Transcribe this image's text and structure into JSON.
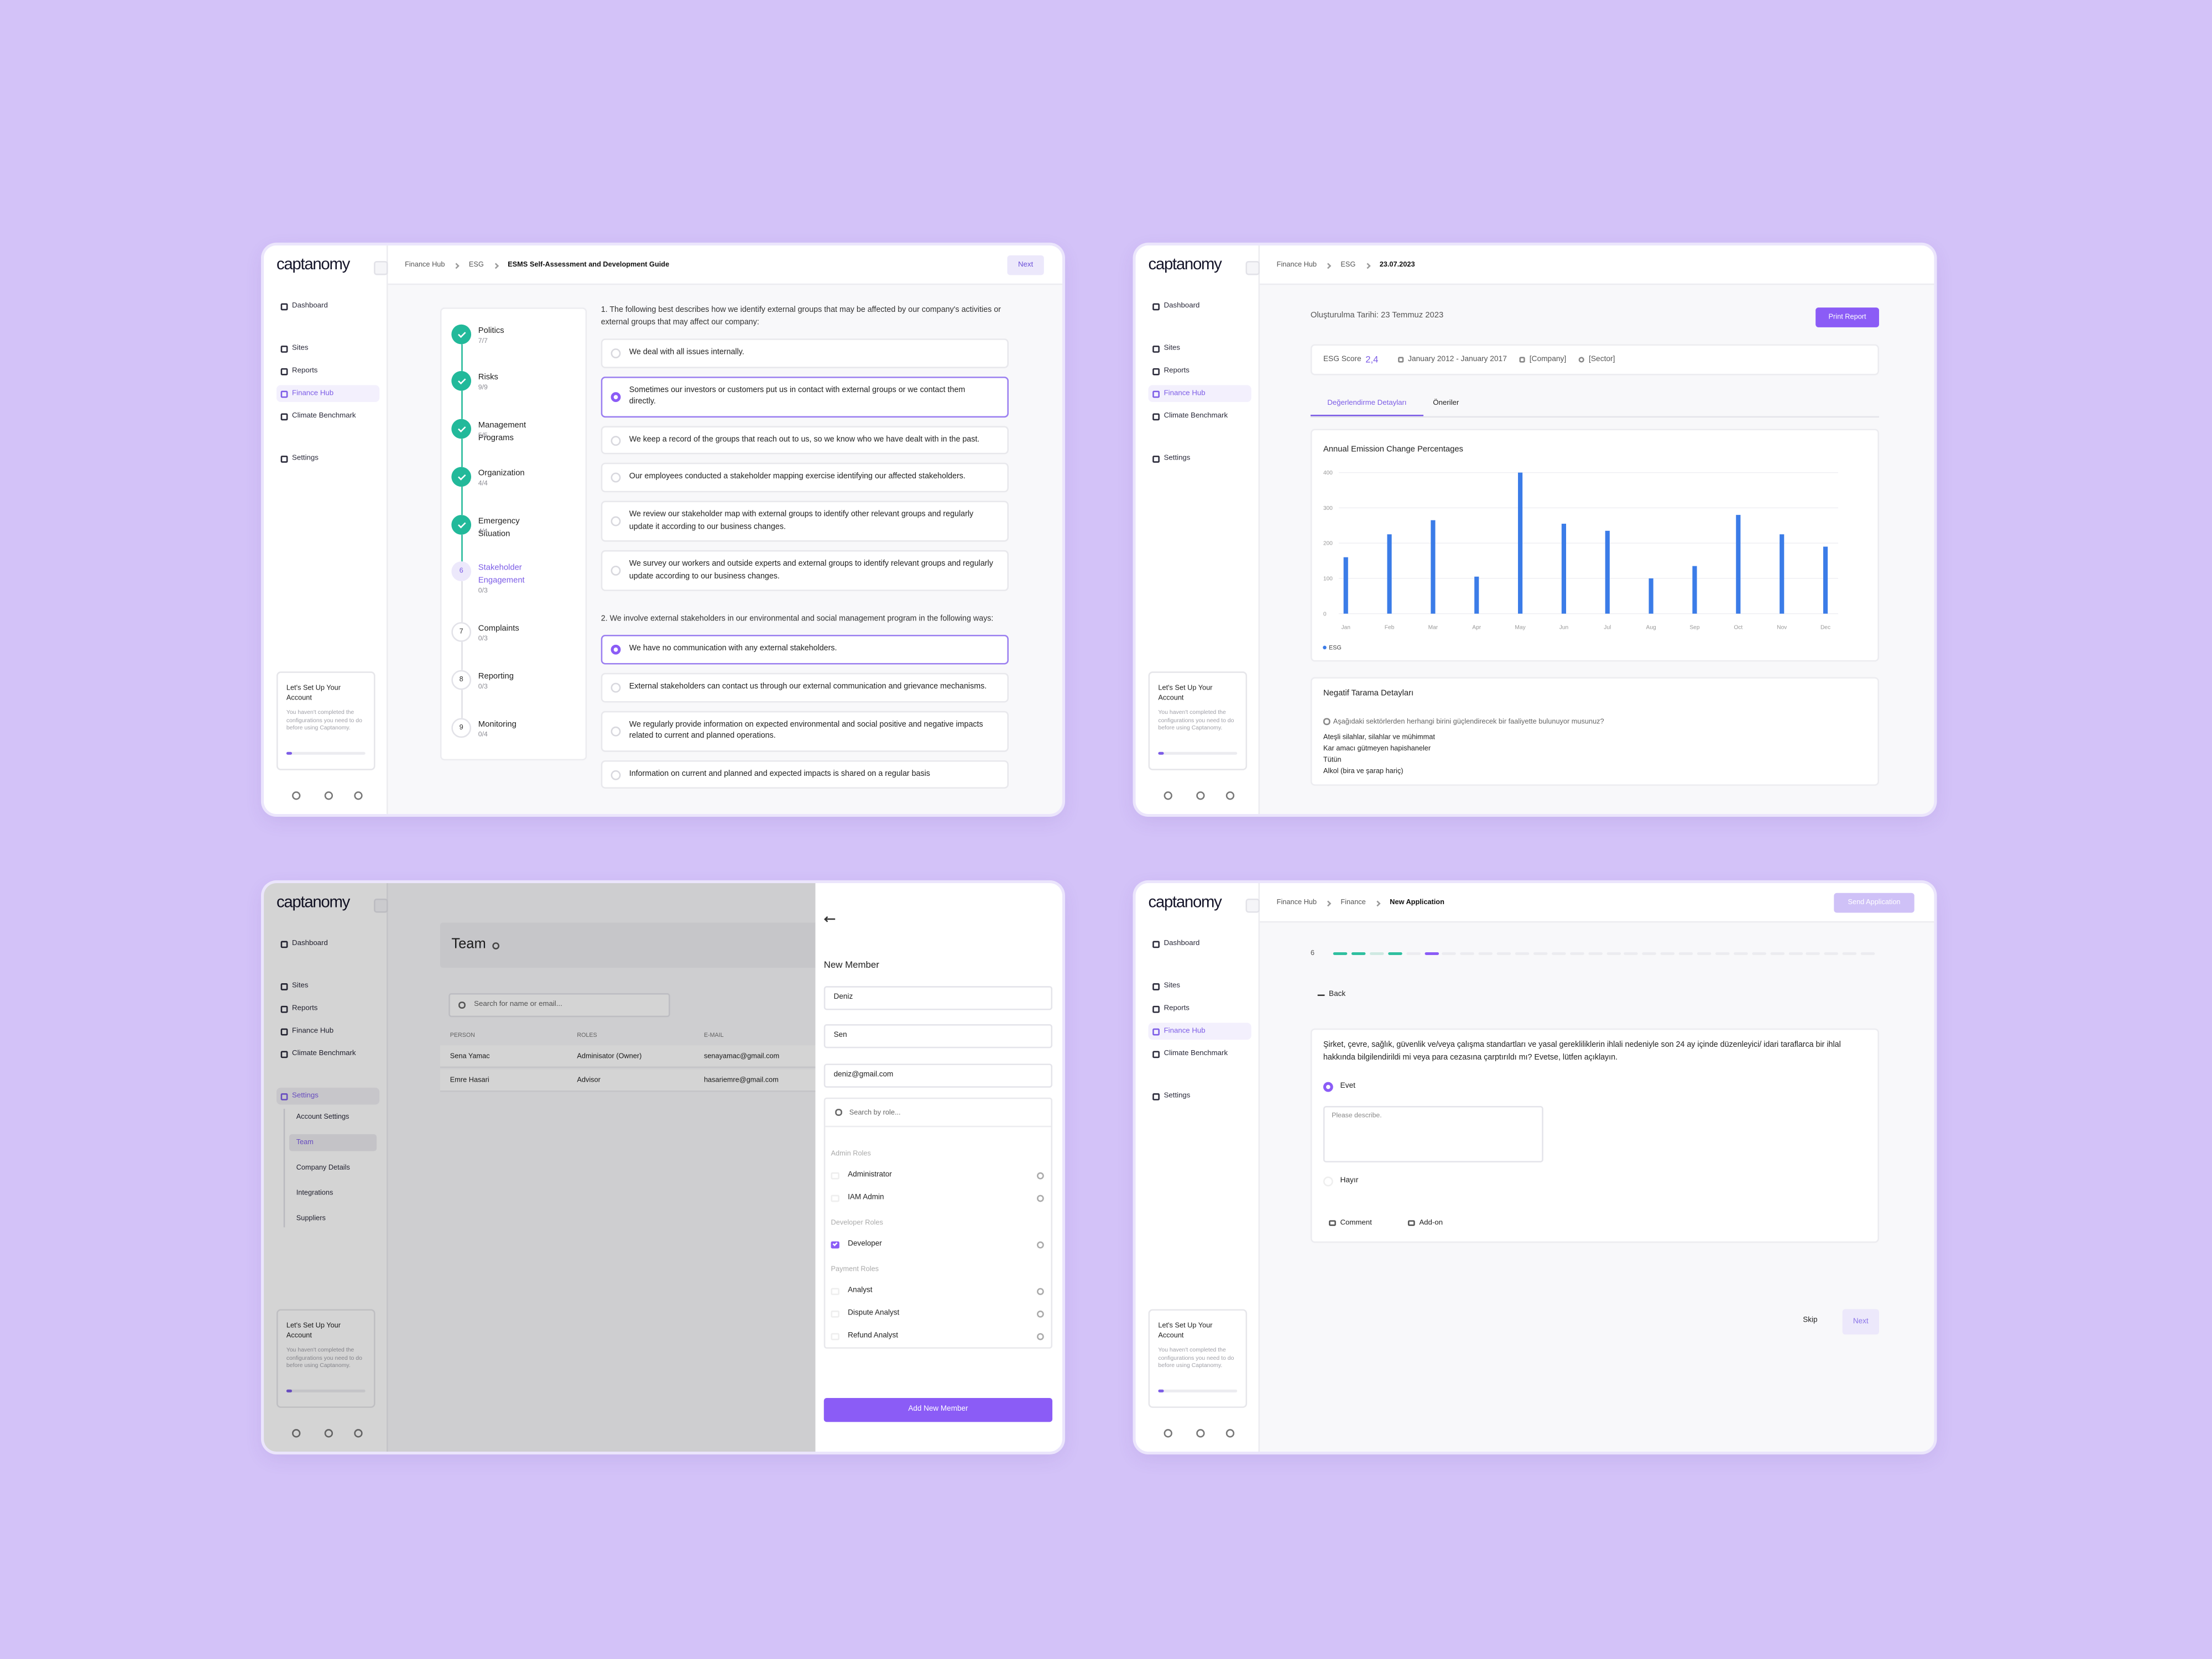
{
  "screens": [
    {
      "sidebar": {
        "logo": "captanomy",
        "nav": [
          {
            "label": "Dashboard"
          },
          {
            "label": "Sites"
          },
          {
            "label": "Reports"
          },
          {
            "label": "Finance Hub",
            "active": true
          },
          {
            "label": "Climate Benchmark"
          },
          {
            "label": "Settings"
          }
        ],
        "setup_title": "Let's Set Up Your Account",
        "setup_text": "You haven't completed the configurations you need to do before using Captanomy."
      },
      "breadcrumb": [
        "Finance Hub",
        "ESG",
        "ESMS Self-Assessment and Development Guide"
      ],
      "next_button": "Next",
      "steps": [
        {
          "label": "Politics",
          "progress": "7/7",
          "done": true
        },
        {
          "label": "Risks",
          "progress": "9/9",
          "done": true
        },
        {
          "label": "Management Programs",
          "progress": "5/5",
          "done": true
        },
        {
          "label": "Organization",
          "progress": "4/4",
          "done": true
        },
        {
          "label": "Emergency Situation",
          "progress": "4/4",
          "done": true
        },
        {
          "number": 6,
          "label": "Stakeholder Engagement",
          "progress": "0/3",
          "active": true
        },
        {
          "number": 7,
          "label": "Complaints",
          "progress": "0/3"
        },
        {
          "number": 8,
          "label": "Reporting",
          "progress": "0/3"
        },
        {
          "number": 9,
          "label": "Monitoring",
          "progress": "0/4"
        }
      ],
      "questions": [
        {
          "text": "1. The following best describes how we identify external groups that may be affected by our company's activities or external groups that may affect our company:",
          "options": [
            {
              "text": "We deal with all issues internally."
            },
            {
              "text": "Sometimes our investors or customers put us in contact with external groups or we contact them directly.",
              "selected": true
            },
            {
              "text": "We keep a record of the groups that reach out to us, so we know who we have dealt with in the past."
            },
            {
              "text": "Our employees conducted a stakeholder mapping exercise identifying our affected stakeholders."
            },
            {
              "text": "We review our stakeholder map with external groups to identify other relevant groups and regularly update it according to our business changes."
            },
            {
              "text": "We survey our workers and outside experts and external groups to identify relevant groups and regularly update according to our business changes."
            }
          ]
        },
        {
          "text": "2. We involve external stakeholders in our environmental and social management program in the following ways:",
          "options": [
            {
              "text": "We have no communication with any external stakeholders.",
              "selected": true
            },
            {
              "text": "External stakeholders can contact us through our external communication and grievance mechanisms."
            },
            {
              "text": "We regularly provide information on expected environmental and social positive and negative impacts related to current and planned operations."
            },
            {
              "text": "Information on current and planned and expected impacts is shared on a regular basis"
            }
          ]
        }
      ]
    },
    {
      "sidebar": {
        "logo": "captanomy",
        "nav": [
          {
            "label": "Dashboard"
          },
          {
            "label": "Sites"
          },
          {
            "label": "Reports"
          },
          {
            "label": "Finance Hub",
            "active": true
          },
          {
            "label": "Climate Benchmark"
          },
          {
            "label": "Settings"
          }
        ],
        "setup_title": "Let's Set Up Your Account",
        "setup_text": "You haven't completed the configurations you need to do before using Captanomy."
      },
      "breadcrumb": [
        "Finance Hub",
        "ESG",
        "23.07.2023"
      ],
      "created": "Oluşturulma Tarihi: 23 Temmuz 2023",
      "print_button": "Print Report",
      "score_label": "ESG Score",
      "score": "2,4",
      "period": "January 2012 - January 2017",
      "company": "[Company]",
      "sector": "[Sector]",
      "tabs": [
        {
          "label": "Değerlendirme Detayları",
          "active": true
        },
        {
          "label": "Öneriler"
        }
      ],
      "chart": {
        "type": "bar",
        "title": "Annual Emission Change Percentages",
        "categories": [
          "Jan",
          "Feb",
          "Mar",
          "Apr",
          "May",
          "Jun",
          "Jul",
          "Aug",
          "Sep",
          "Oct",
          "Nov",
          "Dec"
        ],
        "series": [
          {
            "name": "ESG",
            "color": "#3b7ce8",
            "values": [
              160,
              225,
              265,
              105,
              400,
              255,
              235,
              100,
              135,
              280,
              225,
              190
            ]
          }
        ],
        "ylim": [
          0,
          400
        ],
        "yticks": [
          0,
          100,
          200,
          300,
          400
        ],
        "grid": true
      },
      "negative": {
        "title": "Negatif Tarama Detayları",
        "question": "Aşağıdaki sektörlerden herhangi birini güçlendirecek bir faaliyette bulunuyor musunuz?",
        "items": [
          "Ateşli silahlar, silahlar ve mühimmat",
          "Kar amacı gütmeyen hapishaneler",
          "Tütün",
          "Alkol (bira ve şarap hariç)"
        ]
      }
    },
    {
      "sidebar": {
        "logo": "captanomy",
        "nav": [
          {
            "label": "Dashboard"
          },
          {
            "label": "Sites"
          },
          {
            "label": "Reports"
          },
          {
            "label": "Finance Hub"
          },
          {
            "label": "Climate Benchmark"
          },
          {
            "label": "Settings",
            "active": true
          }
        ],
        "sub": [
          {
            "label": "Account Settings"
          },
          {
            "label": "Team",
            "active": true
          },
          {
            "label": "Company Details"
          },
          {
            "label": "Integrations"
          },
          {
            "label": "Suppliers"
          }
        ],
        "setup_title": "Let's Set Up Your Account",
        "setup_text": "You haven't completed the configurations you need to do before using Captanomy."
      },
      "page_title": "Team",
      "search_placeholder": "Search for name or email...",
      "columns": [
        "PERSON",
        "ROLES",
        "E-MAIL"
      ],
      "rows": [
        [
          "Sena Yamac",
          "Adminisator (Owner)",
          "senayamac@gmail.com"
        ],
        [
          "Emre Hasari",
          "Advisor",
          "hasariemre@gmail.com"
        ]
      ],
      "drawer": {
        "title": "New Member",
        "fields": [
          "Deniz",
          "Sen",
          "deniz@gmail.com"
        ],
        "role_search": "Search by role...",
        "role_groups": [
          {
            "name": "Admin Roles",
            "roles": [
              {
                "name": "Administrator"
              },
              {
                "name": "IAM Admin"
              }
            ]
          },
          {
            "name": "Developer Roles",
            "roles": [
              {
                "name": "Developer",
                "checked": true
              }
            ]
          },
          {
            "name": "Payment Roles",
            "roles": [
              {
                "name": "Analyst"
              },
              {
                "name": "Dispute Analyst"
              },
              {
                "name": "Refund Analyst"
              }
            ]
          }
        ],
        "button": "Add New Member"
      }
    },
    {
      "sidebar": {
        "logo": "captanomy",
        "nav": [
          {
            "label": "Dashboard"
          },
          {
            "label": "Sites"
          },
          {
            "label": "Reports"
          },
          {
            "label": "Finance Hub",
            "active": true
          },
          {
            "label": "Climate Benchmark"
          },
          {
            "label": "Settings"
          }
        ],
        "setup_title": "Let's Set Up Your Account",
        "setup_text": "You haven't completed the configurations you need to do before using Captanomy."
      },
      "breadcrumb": [
        "Finance Hub",
        "Finance",
        "New Application"
      ],
      "send_button": "Send Application",
      "step": "6",
      "back": "Back",
      "question": "Şirket, çevre, sağlık, güvenlik ve/veya çalışma standartları ve yasal gerekliliklerin ihlali nedeniyle son 24 ay içinde düzenleyici/ idari taraflarca bir ihlal hakkında bilgilendirildi mi veya para cezasına çarptırıldı mı? Evetse, lütfen açıklayın.",
      "options": [
        {
          "label": "Evet",
          "selected": true
        },
        {
          "label": "Hayır"
        }
      ],
      "placeholder": "Please describe.",
      "actions": [
        "Comment",
        "Add-on"
      ],
      "skip": "Skip",
      "next": "Next"
    }
  ]
}
